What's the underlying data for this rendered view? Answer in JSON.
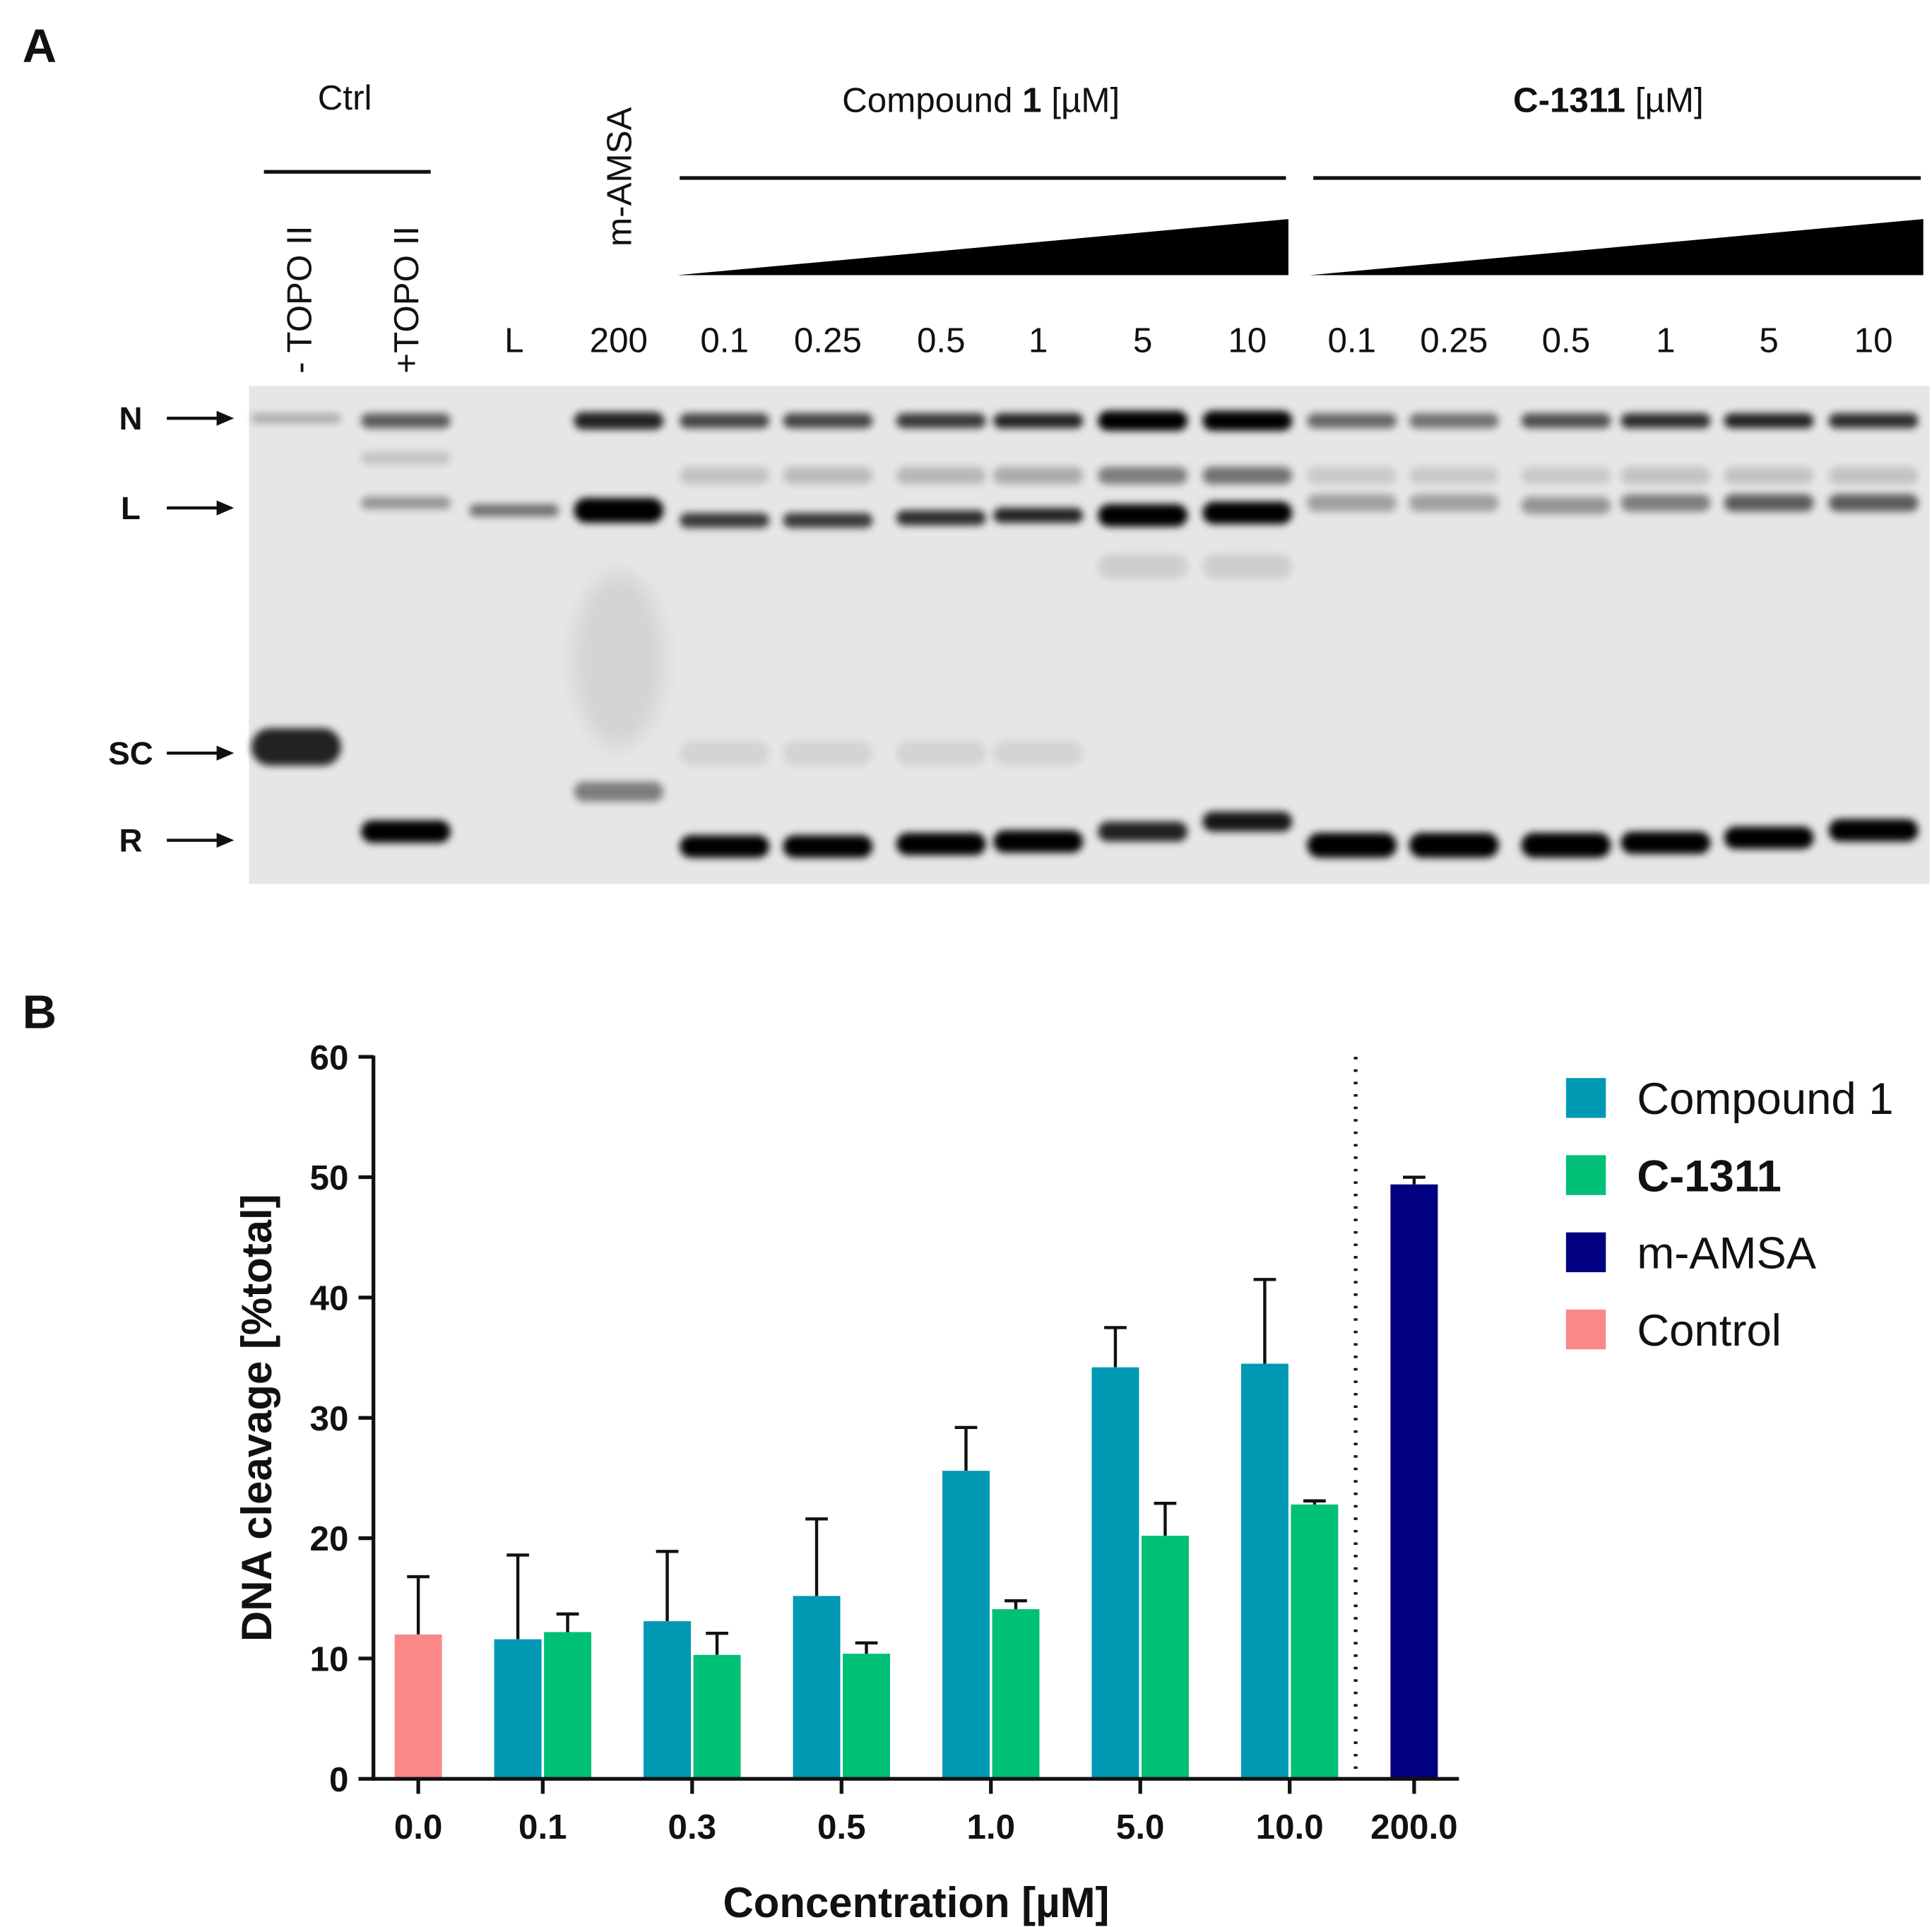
{
  "panel_a": {
    "label": "A",
    "ctrl": "Ctrl",
    "rotated_lanes": [
      "- TOPO II",
      "+TOPO II",
      "m-AMSA"
    ],
    "compound_title": [
      "Compound ",
      "1",
      " [µM]"
    ],
    "c1311_title": [
      "C-1311",
      " [µM]"
    ],
    "lane_labels": [
      "L",
      "200",
      "0.1",
      "0.25",
      "0.5",
      "1",
      "5",
      "10",
      "0.1",
      "0.25",
      "0.5",
      "1",
      "5",
      "10"
    ],
    "band_labels": [
      "N",
      "L",
      "SC",
      "R"
    ]
  },
  "chart_data": {
    "panel_label": "B",
    "type": "bar",
    "xlabel": "Concentration [µM]",
    "ylabel": "DNA cleavage [%total]",
    "categories": [
      "0.0",
      "0.1",
      "0.3",
      "0.5",
      "1.0",
      "5.0",
      "10.0",
      "200.0"
    ],
    "series": [
      {
        "name": "Compound 1",
        "color": "#0099b4",
        "values": [
          null,
          11.6,
          13.1,
          15.2,
          25.6,
          34.2,
          34.5,
          null
        ],
        "errors": [
          null,
          7.0,
          5.8,
          6.4,
          3.6,
          3.3,
          7.0,
          null
        ]
      },
      {
        "name": "C-1311",
        "color": "#00c078",
        "values": [
          null,
          12.2,
          10.3,
          10.4,
          14.1,
          20.2,
          22.8,
          null
        ],
        "errors": [
          null,
          1.5,
          1.8,
          0.9,
          0.7,
          2.7,
          0.3,
          null
        ]
      },
      {
        "name": "m-AMSA",
        "color": "#000080",
        "values": [
          null,
          null,
          null,
          null,
          null,
          null,
          null,
          49.4
        ],
        "errors": [
          null,
          null,
          null,
          null,
          null,
          null,
          null,
          0.6
        ]
      },
      {
        "name": "Control",
        "color": "#fa8888",
        "values": [
          12.0,
          null,
          null,
          null,
          null,
          null,
          null,
          null
        ],
        "errors": [
          4.8,
          null,
          null,
          null,
          null,
          null,
          null,
          null
        ]
      }
    ],
    "ylim": [
      0,
      60
    ],
    "yticks": [
      0,
      10,
      20,
      30,
      40,
      50,
      60
    ],
    "legend": "upper right"
  }
}
